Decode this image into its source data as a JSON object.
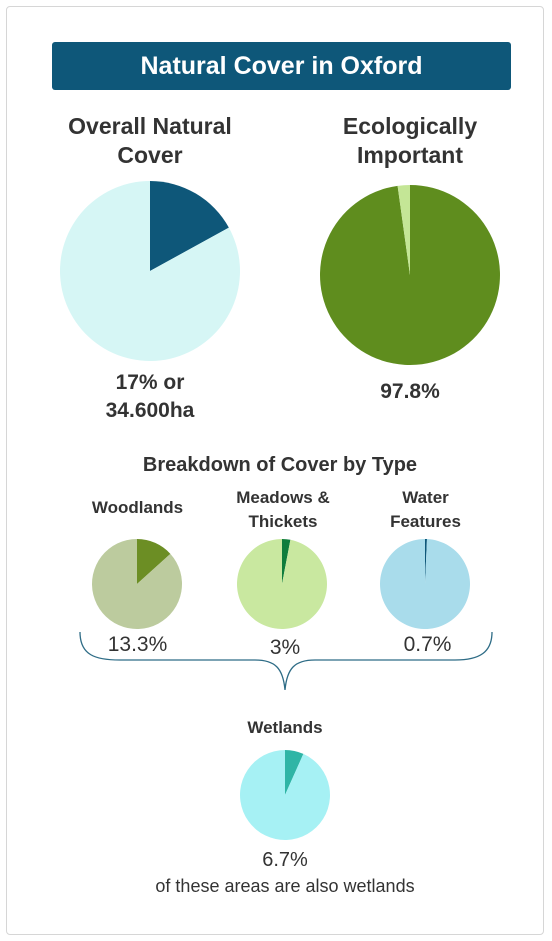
{
  "title": "Natural Cover in Oxford",
  "overall": {
    "heading_line1": "Overall Natural",
    "heading_line2": "Cover",
    "value_line1": "17% or",
    "value_line2": "34.600ha"
  },
  "ecological": {
    "heading_line1": "Ecologically",
    "heading_line2": "Important",
    "value": "97.8%"
  },
  "breakdown": {
    "heading": "Breakdown of Cover by Type",
    "woodlands": {
      "label": "Woodlands",
      "value": "13.3%"
    },
    "meadows": {
      "label_line1": "Meadows &",
      "label_line2": "Thickets",
      "value": "3%"
    },
    "water": {
      "label_line1": "Water",
      "label_line2": "Features",
      "value": "0.7%"
    }
  },
  "wetlands": {
    "label": "Wetlands",
    "value": "6.7%",
    "note": "of these areas are also wetlands"
  },
  "chart_data": [
    {
      "type": "pie",
      "title": "Overall Natural Cover",
      "categories": [
        "natural",
        "other"
      ],
      "values": [
        17,
        83
      ],
      "colors": [
        "#0e5779",
        "#d6f6f5"
      ]
    },
    {
      "type": "pie",
      "title": "Ecologically Important",
      "categories": [
        "ecologically important",
        "other"
      ],
      "values": [
        97.8,
        2.2
      ],
      "colors": [
        "#5f8d1e",
        "#c4e696"
      ]
    },
    {
      "type": "pie",
      "title": "Woodlands",
      "categories": [
        "woodlands",
        "other"
      ],
      "values": [
        13.3,
        86.7
      ],
      "colors": [
        "#6c8e24",
        "#bccb9e"
      ]
    },
    {
      "type": "pie",
      "title": "Meadows & Thickets",
      "categories": [
        "meadows & thickets",
        "other"
      ],
      "values": [
        3,
        97
      ],
      "colors": [
        "#0f7d3c",
        "#c9e8a0"
      ]
    },
    {
      "type": "pie",
      "title": "Water Features",
      "categories": [
        "water features",
        "other"
      ],
      "values": [
        0.7,
        99.3
      ],
      "colors": [
        "#0e5779",
        "#a9dceb"
      ]
    },
    {
      "type": "pie",
      "title": "Wetlands",
      "categories": [
        "wetlands",
        "other"
      ],
      "values": [
        6.7,
        93.3
      ],
      "colors": [
        "#2fb5a6",
        "#a6f1f4"
      ]
    }
  ]
}
